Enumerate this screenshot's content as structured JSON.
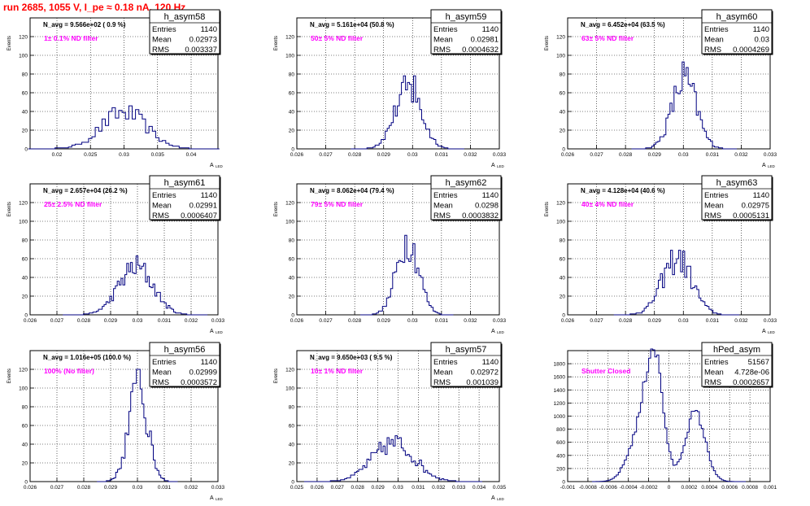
{
  "title": "run 2685,  1055 V, I_pe ≈ 0.18 nA, 120 Hz",
  "colors": {
    "hist_line": "#000080",
    "annotation": "#ff00ff",
    "title": "#ff0000",
    "frame": "#000000",
    "grid": "#000000"
  },
  "chart_data": [
    {
      "type": "bar",
      "name": "h_asym58",
      "nlabel": "N_avg = 9.566e+02 ( 0.9 %)",
      "filter": "1± 0.1% ND filter",
      "xlim": [
        0.016,
        0.044
      ],
      "ylim": [
        0,
        140
      ],
      "xticks": [
        "0.02",
        "0.025",
        "0.03",
        "0.035",
        "0.04"
      ],
      "xtick_values": [
        0.02,
        0.025,
        0.03,
        0.035,
        0.04
      ],
      "yticks": [
        "0",
        "20",
        "40",
        "60",
        "80",
        "100",
        "120"
      ],
      "ytick_values": [
        0,
        20,
        40,
        60,
        80,
        100,
        120
      ],
      "xlabel": "A",
      "xlabel_sub": "LED",
      "ylabel": "Events",
      "stats": [
        [
          "Entries",
          "1140"
        ],
        [
          "Mean",
          "0.02973"
        ],
        [
          "RMS",
          "0.003337"
        ]
      ],
      "bins": {
        "center": 0.02973,
        "sigma": 0.003337,
        "width": 0.0005,
        "peak": 40
      }
    },
    {
      "type": "bar",
      "name": "h_asym59",
      "nlabel": "N_avg = 5.161e+04 (50.8 %)",
      "filter": "50± 5% ND filter",
      "xlim": [
        0.026,
        0.033
      ],
      "ylim": [
        0,
        140
      ],
      "xticks": [
        "0.026",
        "0.027",
        "0.028",
        "0.029",
        "0.03",
        "0.031",
        "0.032",
        "0.033"
      ],
      "xtick_values": [
        0.026,
        0.027,
        0.028,
        0.029,
        0.03,
        0.031,
        0.032,
        0.033
      ],
      "yticks": [
        "0",
        "20",
        "40",
        "60",
        "80",
        "100",
        "120"
      ],
      "ytick_values": [
        0,
        20,
        40,
        60,
        80,
        100,
        120
      ],
      "xlabel": "A",
      "xlabel_sub": "LED",
      "ylabel": "Events",
      "stats": [
        [
          "Entries",
          "1140"
        ],
        [
          "Mean",
          "0.02981"
        ],
        [
          "RMS",
          "0.0004632"
        ]
      ],
      "bins": {
        "center": 0.02981,
        "sigma": 0.0004632,
        "width": 7e-05,
        "peak": 65,
        "spike": [
          0.03005,
          78
        ]
      }
    },
    {
      "type": "bar",
      "name": "h_asym60",
      "nlabel": "N_avg = 6.452e+04 (63.5 %)",
      "filter": "63± 5% ND filter",
      "xlim": [
        0.026,
        0.033
      ],
      "ylim": [
        0,
        140
      ],
      "xticks": [
        "0.026",
        "0.027",
        "0.028",
        "0.029",
        "0.03",
        "0.031",
        "0.032",
        "0.033"
      ],
      "xtick_values": [
        0.026,
        0.027,
        0.028,
        0.029,
        0.03,
        0.031,
        0.032,
        0.033
      ],
      "yticks": [
        "0",
        "20",
        "40",
        "60",
        "80",
        "100",
        "120"
      ],
      "ytick_values": [
        0,
        20,
        40,
        60,
        80,
        100,
        120
      ],
      "xlabel": "A",
      "xlabel_sub": "LED",
      "ylabel": "Events",
      "stats": [
        [
          "Entries",
          "1140"
        ],
        [
          "Mean",
          "0.03"
        ],
        [
          "RMS",
          "0.0004269"
        ]
      ],
      "bins": {
        "center": 0.03,
        "sigma": 0.0004269,
        "width": 7e-05,
        "peak": 75,
        "spike": [
          0.02995,
          93
        ]
      }
    },
    {
      "type": "bar",
      "name": "h_asym61",
      "nlabel": "N_avg = 2.657e+04 (26.2 %)",
      "filter": "25± 2.5% ND filter",
      "xlim": [
        0.026,
        0.033
      ],
      "ylim": [
        0,
        140
      ],
      "xticks": [
        "0.026",
        "0.027",
        "0.028",
        "0.029",
        "0.03",
        "0.031",
        "0.032",
        "0.033"
      ],
      "xtick_values": [
        0.026,
        0.027,
        0.028,
        0.029,
        0.03,
        0.031,
        0.032,
        0.033
      ],
      "yticks": [
        "0",
        "20",
        "40",
        "60",
        "80",
        "100",
        "120"
      ],
      "ytick_values": [
        0,
        20,
        40,
        60,
        80,
        100,
        120
      ],
      "xlabel": "A",
      "xlabel_sub": "LED",
      "ylabel": "Events",
      "stats": [
        [
          "Entries",
          "1140"
        ],
        [
          "Mean",
          "0.02991"
        ],
        [
          "RMS",
          "0.0006407"
        ]
      ],
      "bins": {
        "center": 0.02991,
        "sigma": 0.0006407,
        "width": 7e-05,
        "peak": 52
      }
    },
    {
      "type": "bar",
      "name": "h_asym62",
      "nlabel": "N_avg = 8.062e+04 (79.4 %)",
      "filter": "79± 5% ND filter",
      "xlim": [
        0.026,
        0.033
      ],
      "ylim": [
        0,
        140
      ],
      "xticks": [
        "0.026",
        "0.027",
        "0.028",
        "0.029",
        "0.03",
        "0.031",
        "0.032",
        "0.033"
      ],
      "xtick_values": [
        0.026,
        0.027,
        0.028,
        0.029,
        0.03,
        0.031,
        0.032,
        0.033
      ],
      "yticks": [
        "0",
        "20",
        "40",
        "60",
        "80",
        "100",
        "120"
      ],
      "ytick_values": [
        0,
        20,
        40,
        60,
        80,
        100,
        120
      ],
      "xlabel": "A",
      "xlabel_sub": "LED",
      "ylabel": "Events",
      "stats": [
        [
          "Entries",
          "1140"
        ],
        [
          "Mean",
          "0.0298"
        ],
        [
          "RMS",
          "0.0003832"
        ]
      ],
      "bins": {
        "center": 0.0298,
        "sigma": 0.0003832,
        "width": 7e-05,
        "peak": 82
      }
    },
    {
      "type": "bar",
      "name": "h_asym63",
      "nlabel": "N_avg = 4.128e+04 (40.6 %)",
      "filter": "40± 4% ND filter",
      "xlim": [
        0.026,
        0.033
      ],
      "ylim": [
        0,
        140
      ],
      "xticks": [
        "0.026",
        "0.027",
        "0.028",
        "0.029",
        "0.03",
        "0.031",
        "0.032",
        "0.033"
      ],
      "xtick_values": [
        0.026,
        0.027,
        0.028,
        0.029,
        0.03,
        0.031,
        0.032,
        0.033
      ],
      "yticks": [
        "0",
        "20",
        "40",
        "60",
        "80",
        "100",
        "120"
      ],
      "ytick_values": [
        0,
        20,
        40,
        60,
        80,
        100,
        120
      ],
      "xlabel": "A",
      "xlabel_sub": "LED",
      "ylabel": "Events",
      "stats": [
        [
          "Entries",
          "1140"
        ],
        [
          "Mean",
          "0.02975"
        ],
        [
          "RMS",
          "0.0005131"
        ]
      ],
      "bins": {
        "center": 0.02975,
        "sigma": 0.0005131,
        "width": 7e-05,
        "peak": 62
      }
    },
    {
      "type": "bar",
      "name": "h_asym56",
      "nlabel": "N_avg = 1.016e+05 (100.0 %)",
      "filter": "100% (No filter)",
      "xlim": [
        0.026,
        0.033
      ],
      "ylim": [
        0,
        140
      ],
      "xticks": [
        "0.026",
        "0.027",
        "0.028",
        "0.029",
        "0.03",
        "0.031",
        "0.032",
        "0.033"
      ],
      "xtick_values": [
        0.026,
        0.027,
        0.028,
        0.029,
        0.03,
        0.031,
        0.032,
        0.033
      ],
      "yticks": [
        "0",
        "20",
        "40",
        "60",
        "80",
        "100",
        "120"
      ],
      "ytick_values": [
        0,
        20,
        40,
        60,
        80,
        100,
        120
      ],
      "xlabel": "A",
      "xlabel_sub": "LED",
      "ylabel": "Events",
      "stats": [
        [
          "Entries",
          "1140"
        ],
        [
          "Mean",
          "0.02999"
        ],
        [
          "RMS",
          "0.0003572"
        ]
      ],
      "bins": {
        "center": 0.02999,
        "sigma": 0.0003572,
        "width": 7e-05,
        "peak": 100,
        "spike": [
          0.03,
          120
        ]
      }
    },
    {
      "type": "bar",
      "name": "h_asym57",
      "nlabel": "N_avg = 9.650e+03 ( 9.5 %)",
      "filter": "10± 1% ND filter",
      "xlim": [
        0.025,
        0.035
      ],
      "ylim": [
        0,
        140
      ],
      "xticks": [
        "0.025",
        "0.026",
        "0.027",
        "0.028",
        "0.029",
        "0.03",
        "0.031",
        "0.032",
        "0.033",
        "0.034",
        "0.035"
      ],
      "xtick_values": [
        0.025,
        0.026,
        0.027,
        0.028,
        0.029,
        0.03,
        0.031,
        0.032,
        0.033,
        0.034,
        0.035
      ],
      "yticks": [
        "0",
        "20",
        "40",
        "60",
        "80",
        "100",
        "120"
      ],
      "ytick_values": [
        0,
        20,
        40,
        60,
        80,
        100,
        120
      ],
      "xlabel": "A",
      "xlabel_sub": "LED",
      "ylabel": "Events",
      "stats": [
        [
          "Entries",
          "1140"
        ],
        [
          "Mean",
          "0.02972"
        ],
        [
          "RMS",
          "0.001039"
        ]
      ],
      "bins": {
        "center": 0.02972,
        "sigma": 0.001039,
        "width": 0.0001,
        "peak": 42
      }
    },
    {
      "type": "bar",
      "name": "hPed_asym",
      "nlabel": "",
      "filter": "Shutter Closed",
      "xlim": [
        -0.001,
        0.001
      ],
      "ylim": [
        0,
        2000
      ],
      "xticks": [
        "-0.001",
        "-0.0008",
        "-0.0006",
        "-0.0004",
        "-0.0002",
        "0",
        "0.0002",
        "0.0004",
        "0.0006",
        "0.0008",
        "0.001"
      ],
      "xtick_values": [
        -0.001,
        -0.0008,
        -0.0006,
        -0.0004,
        -0.0002,
        0,
        0.0002,
        0.0004,
        0.0006,
        0.0008,
        0.001
      ],
      "yticks": [
        "0",
        "200",
        "400",
        "600",
        "800",
        "1000",
        "1200",
        "1400",
        "1600",
        "1800"
      ],
      "ytick_values": [
        0,
        200,
        400,
        600,
        800,
        1000,
        1200,
        1400,
        1600,
        1800
      ],
      "xlabel": "",
      "xlabel_sub": "",
      "ylabel": "",
      "stats": [
        [
          "Entries",
          "51567"
        ],
        [
          "Mean",
          "4.728e-06"
        ],
        [
          "RMS",
          "0.0002657"
        ]
      ],
      "bins": {
        "bimodal": true,
        "width": 2e-05,
        "peaks": [
          [
            -0.00015,
            1750,
            0.00012
          ],
          [
            -0.0003,
            700,
            0.00016
          ],
          [
            0.00025,
            1050,
            0.00014
          ]
        ]
      }
    }
  ]
}
